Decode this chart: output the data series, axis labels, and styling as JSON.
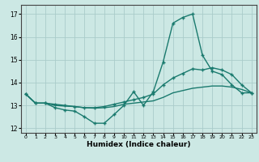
{
  "title": "",
  "xlabel": "Humidex (Indice chaleur)",
  "background_color": "#cce8e4",
  "grid_color": "#aaccca",
  "line_color": "#1a7a6e",
  "xlim": [
    -0.5,
    23.5
  ],
  "ylim": [
    11.8,
    17.4
  ],
  "yticks": [
    12,
    13,
    14,
    15,
    16,
    17
  ],
  "xticks": [
    0,
    1,
    2,
    3,
    4,
    5,
    6,
    7,
    8,
    9,
    10,
    11,
    12,
    13,
    14,
    15,
    16,
    17,
    18,
    19,
    20,
    21,
    22,
    23
  ],
  "line1_x": [
    0,
    1,
    2,
    3,
    4,
    5,
    6,
    7,
    8,
    9,
    10,
    11,
    12,
    13,
    14,
    15,
    16,
    17,
    18,
    19,
    20,
    21,
    22,
    23
  ],
  "line1_y": [
    13.5,
    13.1,
    13.1,
    12.9,
    12.8,
    12.75,
    12.5,
    12.22,
    12.22,
    12.6,
    13.0,
    13.6,
    13.0,
    13.6,
    14.9,
    16.6,
    16.85,
    17.0,
    15.2,
    14.5,
    14.35,
    13.9,
    13.55,
    13.55
  ],
  "line2_x": [
    0,
    1,
    2,
    3,
    4,
    5,
    6,
    7,
    8,
    9,
    10,
    11,
    12,
    13,
    14,
    15,
    16,
    17,
    18,
    19,
    20,
    21,
    22,
    23
  ],
  "line2_y": [
    13.5,
    13.1,
    13.1,
    13.05,
    13.0,
    12.95,
    12.9,
    12.9,
    12.95,
    13.05,
    13.15,
    13.25,
    13.35,
    13.5,
    13.9,
    14.2,
    14.4,
    14.6,
    14.55,
    14.65,
    14.55,
    14.35,
    13.9,
    13.55
  ],
  "line3_x": [
    0,
    1,
    2,
    3,
    4,
    5,
    6,
    7,
    8,
    9,
    10,
    11,
    12,
    13,
    14,
    15,
    16,
    17,
    18,
    19,
    20,
    21,
    22,
    23
  ],
  "line3_y": [
    13.5,
    13.1,
    13.1,
    13.0,
    12.97,
    12.95,
    12.9,
    12.88,
    12.9,
    12.95,
    13.05,
    13.1,
    13.15,
    13.2,
    13.35,
    13.55,
    13.65,
    13.75,
    13.8,
    13.85,
    13.85,
    13.8,
    13.7,
    13.55
  ]
}
